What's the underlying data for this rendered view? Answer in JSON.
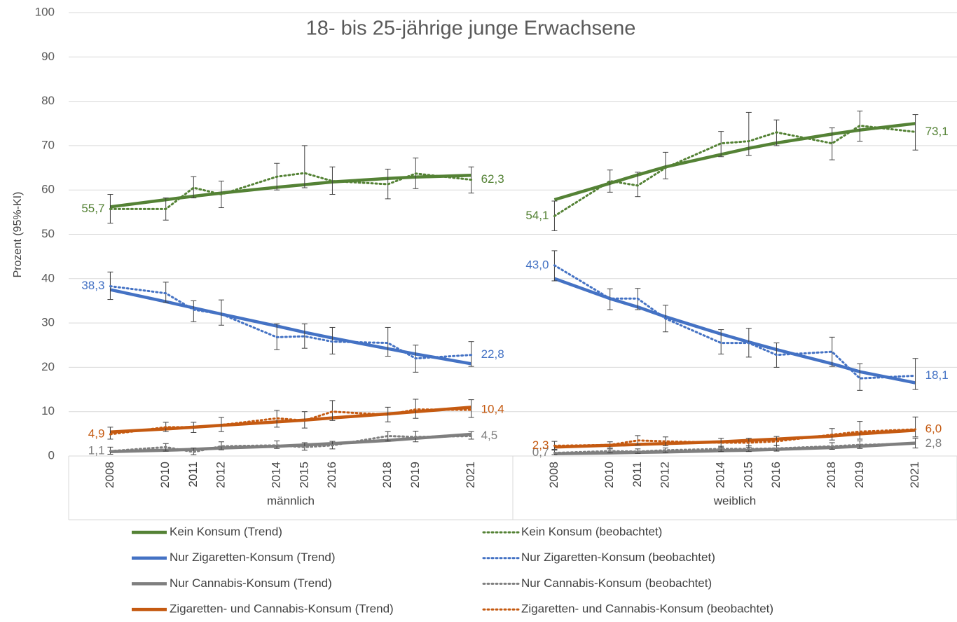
{
  "chart_data": {
    "type": "line",
    "title": "18- bis 25-jährige junge Erwachsene",
    "y_label": "Prozent (95%-KI)",
    "ylim": [
      0,
      100
    ],
    "yticks": [
      0,
      10,
      20,
      30,
      40,
      50,
      60,
      70,
      80,
      90,
      100
    ],
    "grid": true,
    "xlim": [
      2006.5,
      2022.5
    ],
    "x": [
      2008,
      2010,
      2011,
      2012,
      2014,
      2015,
      2016,
      2018,
      2019,
      2021
    ],
    "groups": [
      "männlich",
      "weiblich"
    ],
    "series": [
      {
        "name": "Kein Konsum (Trend)",
        "color": "#548235",
        "style": "solid",
        "values": [
          [
            56.2,
            57.8,
            58.6,
            59.3,
            60.6,
            61.2,
            61.8,
            62.6,
            62.9,
            63.3
          ],
          [
            57.8,
            61.5,
            63.4,
            65.2,
            68.0,
            69.4,
            70.6,
            72.6,
            73.5,
            75.0
          ]
        ]
      },
      {
        "name": "Kein Konsum (beobachtet)",
        "color": "#548235",
        "style": "dotted",
        "values": [
          [
            55.7,
            55.7,
            60.5,
            59.0,
            63.0,
            63.8,
            62.0,
            61.3,
            63.7,
            62.3
          ],
          [
            54.1,
            62.0,
            61.0,
            65.0,
            70.5,
            71.0,
            73.0,
            70.5,
            74.5,
            73.1
          ]
        ],
        "value_labels": [
          [
            "55,7",
            null,
            null,
            null,
            null,
            null,
            null,
            null,
            null,
            "62,3"
          ],
          [
            "54,1",
            null,
            null,
            null,
            null,
            null,
            null,
            null,
            null,
            "73,1"
          ]
        ],
        "lower": [
          [
            52.5,
            53.2,
            58.2,
            56.0,
            60.0,
            60.5,
            59.0,
            58.0,
            60.3,
            59.3
          ],
          [
            50.8,
            59.5,
            58.5,
            62.5,
            67.5,
            67.8,
            70.0,
            66.8,
            71.0,
            69.0
          ]
        ],
        "upper": [
          [
            59.0,
            58.2,
            63.0,
            62.0,
            66.0,
            70.0,
            65.2,
            64.7,
            67.2,
            65.2
          ],
          [
            57.5,
            64.5,
            64.0,
            68.5,
            73.2,
            77.5,
            75.8,
            74.0,
            77.8,
            77.0
          ]
        ]
      },
      {
        "name": "Nur Zigaretten-Konsum (Trend)",
        "color": "#4472c4",
        "style": "solid",
        "values": [
          [
            37.5,
            34.8,
            33.4,
            32.0,
            29.3,
            27.9,
            26.6,
            24.2,
            23.0,
            20.8
          ],
          [
            40.0,
            35.5,
            33.6,
            31.4,
            27.5,
            25.7,
            24.0,
            20.8,
            19.0,
            16.5
          ]
        ]
      },
      {
        "name": "Nur Zigaretten-Konsum (beobachtet)",
        "color": "#4472c4",
        "style": "dotted",
        "values": [
          [
            38.3,
            36.7,
            33.0,
            32.0,
            26.8,
            27.0,
            25.8,
            25.5,
            22.0,
            22.8
          ],
          [
            43.0,
            35.5,
            35.5,
            31.0,
            25.5,
            25.5,
            22.8,
            23.5,
            17.5,
            18.1
          ]
        ],
        "value_labels": [
          [
            "38,3",
            null,
            null,
            null,
            null,
            null,
            null,
            null,
            null,
            "22,8"
          ],
          [
            "43,0",
            null,
            null,
            null,
            null,
            null,
            null,
            null,
            null,
            "18,1"
          ]
        ],
        "lower": [
          [
            35.3,
            34.7,
            30.3,
            29.5,
            24.0,
            24.3,
            23.0,
            22.5,
            18.9,
            20.2
          ],
          [
            39.5,
            33.0,
            33.0,
            28.0,
            23.0,
            22.3,
            20.0,
            20.2,
            14.8,
            15.0
          ]
        ],
        "upper": [
          [
            41.5,
            39.2,
            35.0,
            35.2,
            29.8,
            29.8,
            29.0,
            29.0,
            25.0,
            25.8
          ],
          [
            46.3,
            37.7,
            37.8,
            34.0,
            28.5,
            28.8,
            25.5,
            26.8,
            20.8,
            22.0
          ]
        ]
      },
      {
        "name": "Nur Cannabis-Konsum (Trend)",
        "color": "#7f7f7f",
        "style": "solid",
        "values": [
          [
            1.0,
            1.3,
            1.5,
            1.8,
            2.2,
            2.5,
            2.8,
            3.5,
            4.0,
            4.9
          ],
          [
            0.5,
            0.7,
            0.8,
            0.9,
            1.2,
            1.3,
            1.5,
            1.9,
            2.2,
            2.9
          ]
        ]
      },
      {
        "name": "Nur Cannabis-Konsum (beobachtet)",
        "color": "#7f7f7f",
        "style": "dotted",
        "values": [
          [
            1.1,
            2.0,
            0.9,
            2.2,
            2.4,
            2.0,
            2.4,
            4.5,
            4.3,
            4.5
          ],
          [
            0.7,
            1.1,
            1.0,
            1.3,
            1.6,
            1.6,
            1.7,
            2.2,
            2.5,
            2.8
          ]
        ],
        "value_labels": [
          [
            "1,1",
            null,
            null,
            null,
            null,
            null,
            null,
            null,
            null,
            "4,5"
          ],
          [
            "0,7",
            null,
            null,
            null,
            null,
            null,
            null,
            null,
            null,
            "2,8"
          ]
        ],
        "lower": [
          [
            0.4,
            1.1,
            0.3,
            1.4,
            1.7,
            1.3,
            1.6,
            3.4,
            3.2,
            3.8
          ],
          [
            0.3,
            0.7,
            0.6,
            0.8,
            1.0,
            1.0,
            1.1,
            1.5,
            1.7,
            1.8
          ]
        ],
        "upper": [
          [
            2.0,
            2.8,
            1.8,
            3.2,
            3.4,
            3.0,
            3.3,
            5.5,
            5.6,
            5.5
          ],
          [
            1.3,
            1.6,
            1.6,
            1.8,
            2.2,
            2.3,
            2.4,
            3.0,
            3.4,
            4.0
          ]
        ]
      },
      {
        "name": "Zigaretten- und Cannabis-Konsum (Trend)",
        "color": "#c55a11",
        "style": "solid",
        "values": [
          [
            5.4,
            6.1,
            6.5,
            6.9,
            7.7,
            8.1,
            8.6,
            9.5,
            10.0,
            11.0
          ],
          [
            2.0,
            2.4,
            2.6,
            2.8,
            3.2,
            3.5,
            3.8,
            4.5,
            5.0,
            5.8
          ]
        ]
      },
      {
        "name": "Zigaretten- und Cannabis-Konsum (beobachtet)",
        "color": "#c55a11",
        "style": "dotted",
        "values": [
          [
            4.9,
            6.5,
            6.5,
            7.0,
            8.5,
            8.0,
            10.0,
            9.3,
            10.5,
            10.4
          ],
          [
            2.3,
            2.5,
            3.5,
            3.3,
            3.0,
            3.0,
            3.3,
            4.8,
            5.5,
            6.0
          ]
        ],
        "value_labels": [
          [
            "4,9",
            null,
            null,
            null,
            null,
            null,
            null,
            null,
            null,
            "10,4"
          ],
          [
            "2,3",
            null,
            null,
            null,
            null,
            null,
            null,
            null,
            null,
            "6,0"
          ]
        ],
        "lower": [
          [
            3.8,
            5.5,
            5.3,
            5.5,
            6.5,
            6.3,
            8.0,
            7.7,
            8.5,
            8.7
          ],
          [
            1.5,
            1.8,
            2.5,
            2.3,
            2.0,
            2.0,
            2.4,
            3.6,
            3.8,
            4.3
          ]
        ],
        "upper": [
          [
            6.5,
            7.6,
            7.6,
            8.7,
            10.3,
            10.0,
            12.5,
            11.0,
            12.8,
            12.7
          ],
          [
            3.3,
            3.2,
            4.6,
            4.3,
            4.0,
            4.0,
            4.4,
            6.2,
            7.8,
            8.8
          ]
        ]
      }
    ]
  }
}
